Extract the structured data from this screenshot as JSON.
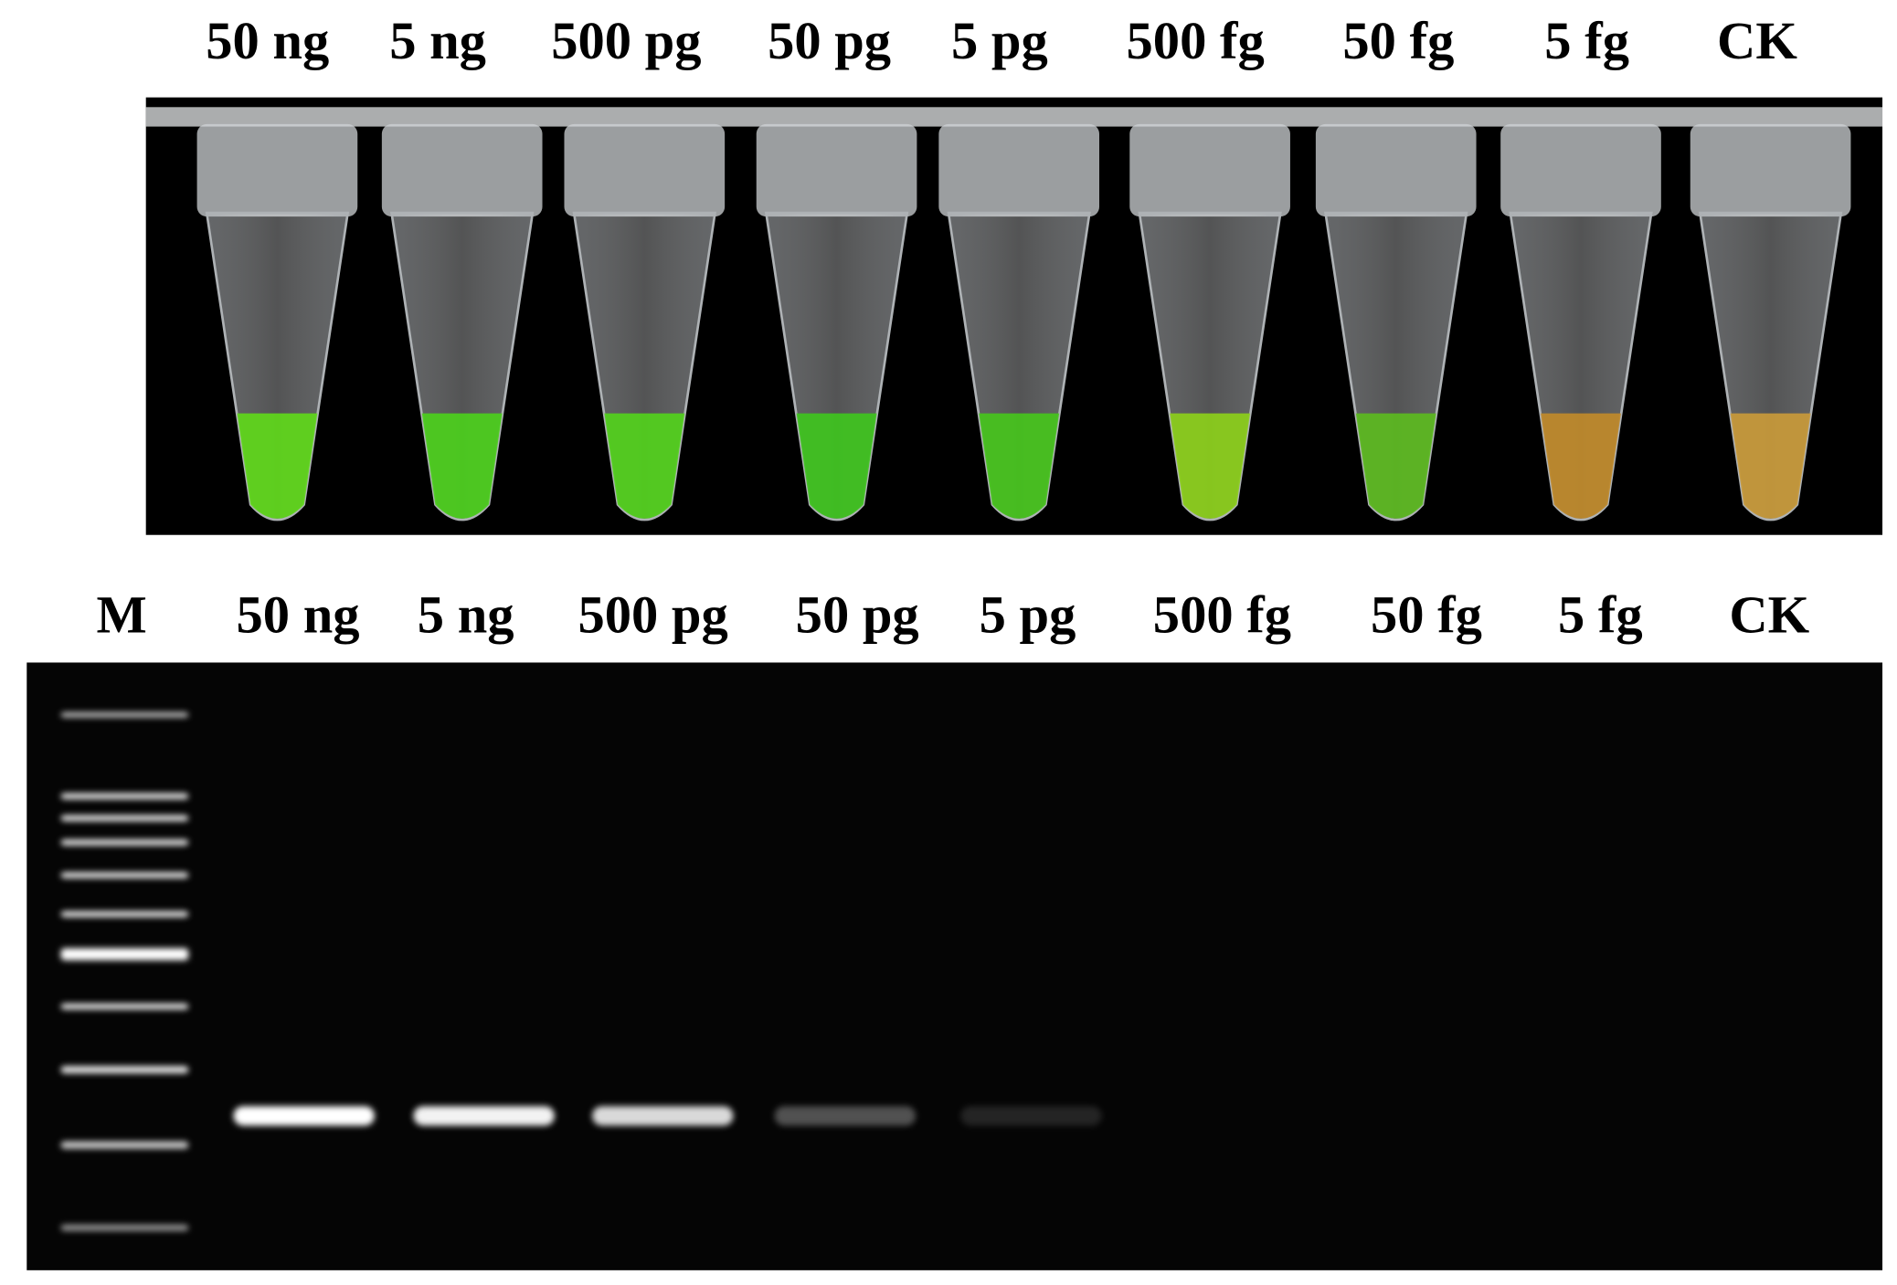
{
  "top": {
    "labels": [
      "50 ng",
      "5 ng",
      "500 pg",
      "50 pg",
      "5 pg",
      "500 fg",
      "50 fg",
      "5 fg",
      "CK"
    ]
  },
  "bottom": {
    "labels": [
      "M",
      "50 ng",
      "5 ng",
      "500 pg",
      "50 pg",
      "5 pg",
      "500 fg",
      "50 fg",
      "5 fg",
      "CK"
    ]
  }
}
